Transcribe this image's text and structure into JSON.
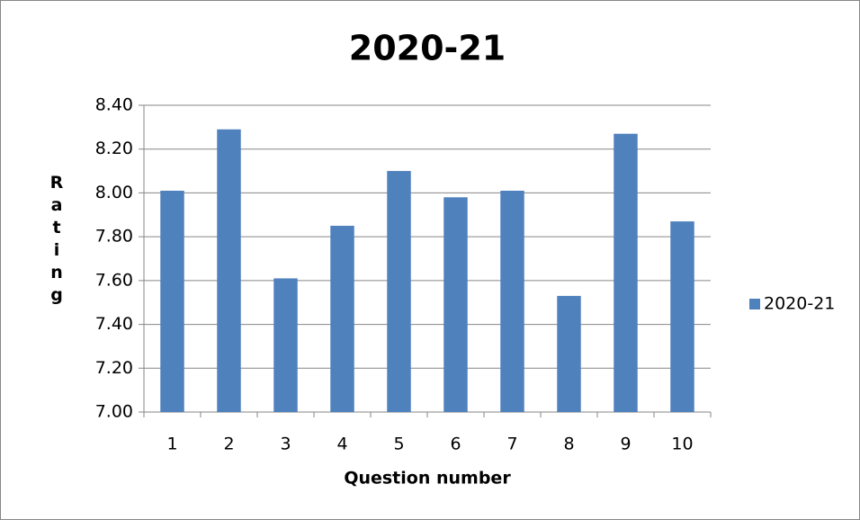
{
  "chart_data": {
    "type": "bar",
    "title": "2020-21",
    "x_label": "Question number",
    "y_label": "Rating",
    "categories": [
      "1",
      "2",
      "3",
      "4",
      "5",
      "6",
      "7",
      "8",
      "9",
      "10"
    ],
    "series": [
      {
        "name": "2020-21",
        "color": "#4f81bd",
        "values": [
          8.01,
          8.29,
          7.61,
          7.85,
          8.1,
          7.98,
          8.01,
          7.53,
          8.27,
          7.87
        ]
      }
    ],
    "ylim": [
      7.0,
      8.4
    ],
    "yticks": [
      {
        "value": 7.0,
        "label": "7.00"
      },
      {
        "value": 7.2,
        "label": "7.20"
      },
      {
        "value": 7.4,
        "label": "7.40"
      },
      {
        "value": 7.6,
        "label": "7.60"
      },
      {
        "value": 7.8,
        "label": "7.80"
      },
      {
        "value": 8.0,
        "label": "8.00"
      },
      {
        "value": 8.2,
        "label": "8.20"
      },
      {
        "value": 8.4,
        "label": "8.40"
      }
    ],
    "grid": true,
    "legend": "right"
  }
}
